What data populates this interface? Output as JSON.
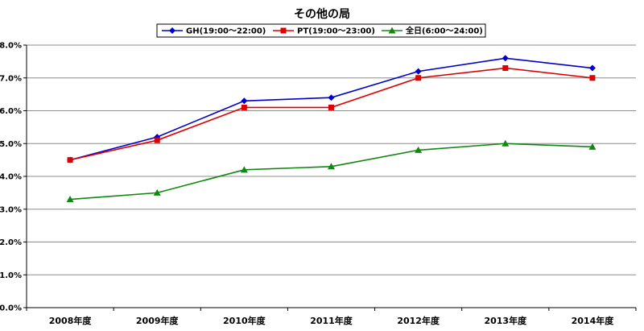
{
  "chart_data": {
    "type": "line",
    "title": "その他の局",
    "categories": [
      "2008年度",
      "2009年度",
      "2010年度",
      "2011年度",
      "2012年度",
      "2013年度",
      "2014年度"
    ],
    "series": [
      {
        "name": "GH(19:00～22:00)",
        "color": "#0000cc",
        "marker": "diamond",
        "values": [
          4.5,
          5.2,
          6.3,
          6.4,
          7.2,
          7.6,
          7.3
        ]
      },
      {
        "name": "PT(19:00～23:00)",
        "color": "#dd0000",
        "marker": "square",
        "values": [
          4.5,
          5.1,
          6.1,
          6.1,
          7.0,
          7.3,
          7.0
        ]
      },
      {
        "name": "全日(6:00～24:00)",
        "color": "#118811",
        "marker": "triangle",
        "values": [
          3.3,
          3.5,
          4.2,
          4.3,
          4.8,
          5.0,
          4.9
        ]
      }
    ],
    "y_ticks": [
      "0.0%",
      "1.0%",
      "2.0%",
      "3.0%",
      "4.0%",
      "5.0%",
      "6.0%",
      "7.0%",
      "8.0%"
    ],
    "ylim": [
      0,
      8
    ],
    "grid": true,
    "legend_position": "top-center"
  }
}
